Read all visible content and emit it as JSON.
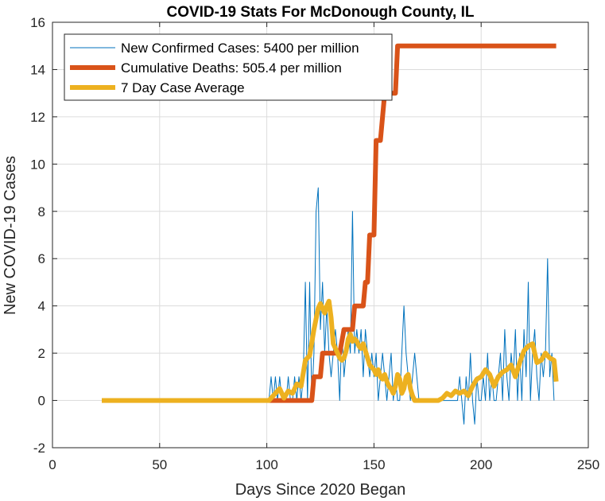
{
  "chart_data": {
    "type": "line",
    "title": "COVID-19 Stats For McDonough County, IL",
    "xlabel": "Days Since 2020 Began",
    "ylabel": "New COVID-19 Cases",
    "xlim": [
      0,
      250
    ],
    "ylim": [
      -2,
      16
    ],
    "xticks": [
      0,
      50,
      100,
      150,
      200,
      250
    ],
    "yticks": [
      -2,
      0,
      2,
      4,
      6,
      8,
      10,
      12,
      14,
      16
    ],
    "grid": true,
    "legend_position": "top-left",
    "series": [
      {
        "name": "New Confirmed Cases: 5400 per million",
        "color": "#0072BD",
        "line_width": "thin",
        "x": [
          100,
          101,
          102,
          103,
          104,
          105,
          106,
          107,
          108,
          109,
          110,
          111,
          112,
          113,
          114,
          115,
          116,
          117,
          118,
          119,
          120,
          121,
          122,
          123,
          124,
          125,
          126,
          127,
          128,
          129,
          130,
          131,
          132,
          133,
          134,
          135,
          136,
          137,
          138,
          139,
          140,
          141,
          142,
          143,
          144,
          145,
          146,
          147,
          148,
          149,
          150,
          151,
          152,
          153,
          154,
          155,
          156,
          157,
          158,
          159,
          160,
          161,
          162,
          163,
          164,
          165,
          166,
          167,
          168,
          169,
          170,
          171,
          172,
          173,
          174,
          175,
          176,
          177,
          178,
          179,
          180,
          181,
          182,
          183,
          184,
          185,
          186,
          187,
          188,
          189,
          190,
          191,
          192,
          193,
          194,
          195,
          196,
          197,
          198,
          199,
          200,
          201,
          202,
          203,
          204,
          205,
          206,
          207,
          208,
          209,
          210,
          211,
          212,
          213,
          214,
          215,
          216,
          217,
          218,
          219,
          220,
          221,
          222,
          223,
          224,
          225,
          226,
          227,
          228,
          229,
          230,
          231,
          232,
          233,
          234
        ],
        "y": [
          0,
          0,
          1,
          0,
          1,
          0,
          1,
          0,
          0,
          0,
          1,
          0,
          0,
          1,
          0,
          1,
          0,
          1,
          5,
          0,
          5,
          0,
          2,
          8,
          9,
          3,
          5,
          2,
          4,
          2,
          1,
          2,
          3,
          2,
          0,
          3,
          1,
          2,
          3,
          2,
          8,
          2,
          3,
          2,
          3,
          1,
          3,
          2,
          1,
          2,
          1,
          2,
          0,
          1,
          2,
          1,
          0,
          1,
          2,
          0,
          1,
          0,
          0,
          2,
          4,
          2,
          1,
          0,
          1,
          2,
          1,
          0,
          0,
          0,
          0,
          0,
          0,
          0,
          0,
          0,
          0,
          0,
          0,
          0,
          0,
          0,
          0,
          0,
          0,
          0,
          1,
          0,
          -1,
          1,
          0,
          2,
          0,
          -1,
          1,
          0,
          0,
          1,
          0,
          2,
          0,
          1,
          0,
          0,
          1,
          2,
          0,
          3,
          1,
          0,
          2,
          1,
          3,
          0,
          2,
          0,
          3,
          1,
          5,
          0,
          2,
          3,
          1,
          0,
          2,
          1,
          2,
          6,
          1,
          2,
          0
        ],
        "y_sampled_note": ""
      },
      {
        "name": "Cumulative Deaths: 505.4 per million",
        "color": "#D95319",
        "line_width": "thick",
        "x": [
          101,
          121,
          122,
          125,
          126,
          134,
          136,
          140,
          141,
          145,
          146,
          147,
          148,
          150,
          151,
          153,
          155,
          156,
          160,
          161,
          162,
          235
        ],
        "y": [
          0,
          0,
          1,
          1,
          2,
          2,
          3,
          3,
          4,
          4,
          5,
          5,
          7,
          7,
          11,
          11,
          13,
          13,
          13,
          15,
          15,
          15
        ]
      },
      {
        "name": "7 Day Case Average",
        "color": "#EDB120",
        "line_width": "thick",
        "x": [
          23,
          100,
          101,
          104,
          106,
          108,
          110,
          112,
          114,
          116,
          118,
          120,
          122,
          124,
          125,
          126,
          127,
          128,
          129,
          130,
          131,
          132,
          133,
          134,
          135,
          136,
          137,
          138,
          139,
          140,
          141,
          142,
          143,
          144,
          145,
          146,
          147,
          148,
          149,
          150,
          151,
          152,
          153,
          154,
          155,
          156,
          157,
          158,
          159,
          160,
          161,
          162,
          163,
          164,
          165,
          166,
          167,
          168,
          169,
          170,
          172,
          175,
          178,
          180,
          182,
          184,
          186,
          188,
          190,
          192,
          194,
          196,
          198,
          200,
          202,
          204,
          206,
          208,
          210,
          212,
          214,
          216,
          218,
          220,
          222,
          224,
          226,
          228,
          230,
          232,
          234,
          235
        ],
        "y": [
          0,
          0,
          0,
          0.3,
          0.5,
          0.1,
          0.4,
          0.3,
          0.7,
          0.6,
          1.7,
          1.9,
          3,
          3.9,
          4.1,
          3.9,
          3.7,
          4.0,
          4.2,
          3.5,
          2.4,
          2.2,
          2.0,
          1.8,
          1.7,
          1.8,
          2.1,
          2.6,
          2.8,
          2.5,
          2.6,
          2.5,
          2.3,
          2.2,
          2.4,
          2.1,
          1.8,
          1.5,
          1.4,
          1.3,
          1.1,
          1.3,
          1.0,
          0.9,
          1.1,
          0.8,
          0.6,
          0.5,
          0.3,
          0.6,
          1.1,
          0.9,
          0.3,
          0.5,
          1.0,
          1.1,
          0.5,
          0.2,
          0,
          0,
          0,
          0,
          0,
          0,
          0.1,
          0.3,
          0.2,
          0.4,
          0.3,
          0.4,
          0.2,
          0.6,
          0.9,
          1.0,
          1.3,
          1.1,
          0.6,
          1.0,
          1.2,
          1.3,
          1.5,
          1.0,
          1.6,
          2.1,
          2.3,
          2.4,
          1.6,
          1.7,
          2.0,
          1.8,
          1.7,
          0.8
        ]
      }
    ]
  }
}
